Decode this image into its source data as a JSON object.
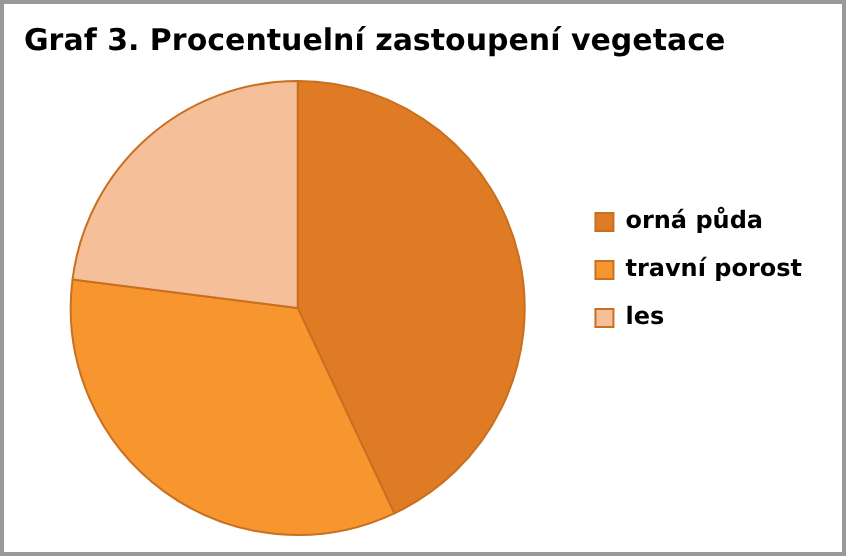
{
  "chart_data": {
    "type": "pie",
    "title": "Graf 3. Procentuelní zastoupení vegetace",
    "categories": [
      "orná půda",
      "travní porost",
      "les"
    ],
    "values": [
      43,
      34,
      23
    ],
    "colors": [
      "#e07b25",
      "#f7962f",
      "#f5bf9a"
    ],
    "legend": "right"
  }
}
